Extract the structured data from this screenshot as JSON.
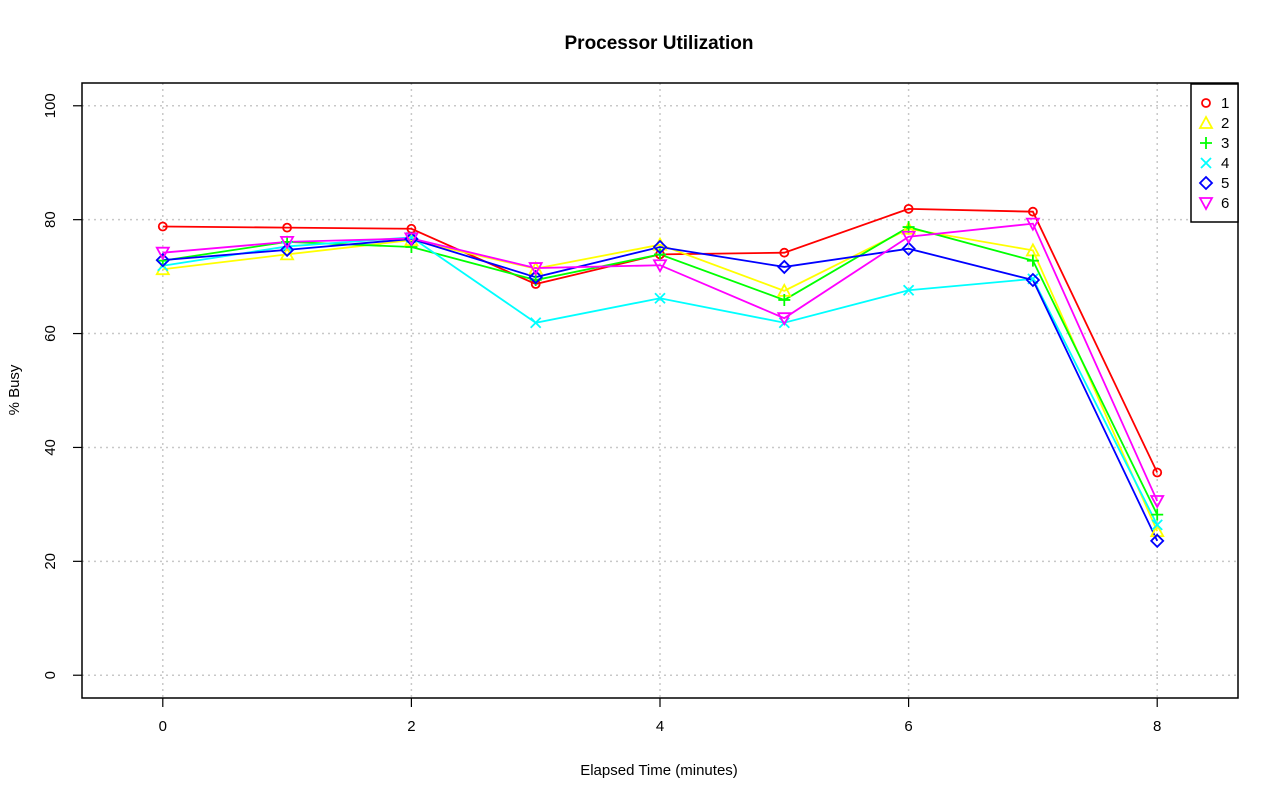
{
  "chart_data": {
    "type": "line",
    "title": "Processor Utilization",
    "xlabel": "Elapsed Time (minutes)",
    "ylabel": "% Busy",
    "xlim": [
      -0.65,
      8.65
    ],
    "ylim": [
      -4,
      104
    ],
    "x_ticks": [
      0,
      2,
      4,
      6,
      8
    ],
    "y_ticks": [
      0,
      20,
      40,
      60,
      80,
      100
    ],
    "grid": true,
    "legend_position": "top-right",
    "x": [
      0,
      1,
      2,
      3,
      4,
      5,
      6,
      7,
      8
    ],
    "series": [
      {
        "name": "1",
        "color": "#ff0000",
        "marker": "circle",
        "values": [
          78.8,
          78.6,
          78.4,
          68.7,
          73.9,
          74.2,
          81.9,
          81.4,
          35.6
        ]
      },
      {
        "name": "2",
        "color": "#ffff00",
        "marker": "triangle-up",
        "values": [
          71.3,
          73.9,
          76.4,
          71.4,
          75.6,
          67.5,
          78.4,
          74.6,
          25.3
        ]
      },
      {
        "name": "3",
        "color": "#00ff00",
        "marker": "plus",
        "values": [
          72.8,
          76.1,
          75.2,
          69.4,
          73.9,
          65.9,
          78.7,
          72.8,
          28.2
        ]
      },
      {
        "name": "4",
        "color": "#00ffff",
        "marker": "cross",
        "values": [
          71.9,
          75.3,
          76.9,
          61.9,
          66.2,
          61.9,
          67.6,
          69.6,
          26.4
        ]
      },
      {
        "name": "5",
        "color": "#0000ff",
        "marker": "diamond",
        "values": [
          72.9,
          74.7,
          76.6,
          69.9,
          75.2,
          71.7,
          74.9,
          69.4,
          23.6
        ]
      },
      {
        "name": "6",
        "color": "#ff00ff",
        "marker": "triangle-down",
        "values": [
          74.2,
          76.1,
          76.7,
          71.5,
          72.0,
          62.7,
          77.0,
          79.3,
          30.6
        ]
      }
    ]
  }
}
